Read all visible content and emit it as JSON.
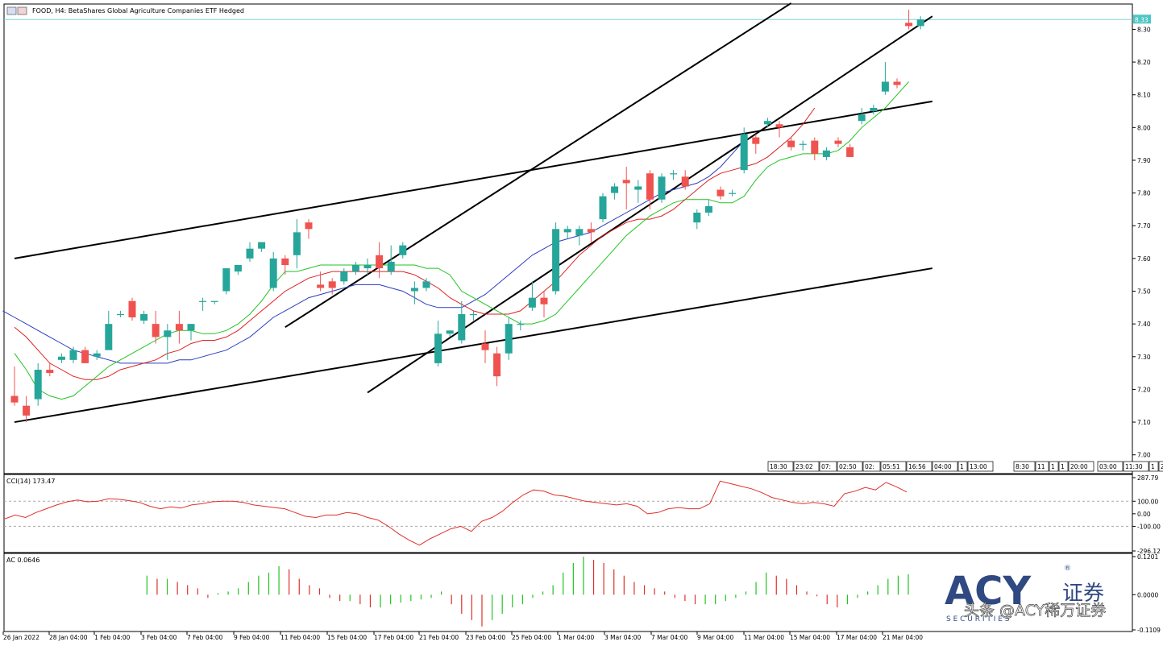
{
  "header": {
    "title": "FOOD, H4:  BetaShares Global Agriculture Companies ETF Hedged"
  },
  "price_axis": {
    "current_price_label": "8.33",
    "ticks": [
      "8.30",
      "8.20",
      "8.10",
      "8.00",
      "7.90",
      "7.80",
      "7.70",
      "7.60",
      "7.50",
      "7.40",
      "7.30",
      "7.20",
      "7.10",
      "7.00"
    ]
  },
  "time_axis": {
    "ticks": [
      "26 Jan 2022",
      "28 Jan 04:00",
      "1 Feb 04:00",
      "3 Feb 04:00",
      "7 Feb 04:00",
      "9 Feb 04:00",
      "11 Feb 04:00",
      "15 Feb 04:00",
      "17 Feb 04:00",
      "21 Feb 04:00",
      "23 Feb 04:00",
      "25 Feb 04:00",
      "1 Mar 04:00",
      "3 Mar 04:00",
      "7 Mar 04:00",
      "9 Mar 04:00",
      "11 Mar 04:00",
      "15 Mar 04:00",
      "17 Mar 04:00",
      "21 Mar 04:00"
    ]
  },
  "session_strip": [
    "18:30",
    "23:02",
    "07:",
    "02:50",
    "02:",
    "05:51",
    "16:56",
    "04:00",
    "1",
    "13:00",
    "8:30",
    "11",
    "1",
    "1",
    "20:00",
    "03:00",
    "11:30",
    "1",
    "20:00",
    "03:00"
  ],
  "cci_pane": {
    "title": "CCI(14) 173.47",
    "ticks": [
      "287.79",
      "100.00",
      "0.00",
      "-100.00",
      "-296.12"
    ]
  },
  "ac_pane": {
    "title": "AC 0.0646",
    "ticks": [
      "0.1201",
      "0.0000",
      "-0.1109"
    ]
  },
  "watermark": {
    "brand": "ACY",
    "registered": "®",
    "sub": "S E C U R I T I E S",
    "cn": "证券",
    "credit": "头条 @ACY稀万证券"
  },
  "colors": {
    "bull": "#26a69a",
    "bear": "#ef5350",
    "ma_fast": "#22c322",
    "ma_mid": "#e02020",
    "ma_slow": "#2a3cc0",
    "cci_line": "#e0302a",
    "price_line": "#7fd3d3",
    "trendline": "#000000"
  },
  "chart_data": {
    "type": "candlestick",
    "symbol": "FOOD",
    "timeframe": "H4",
    "ylim": [
      6.95,
      8.37
    ],
    "current_price": 8.33,
    "candles": [
      {
        "o": 7.18,
        "h": 7.27,
        "l": 7.15,
        "c": 7.16
      },
      {
        "o": 7.15,
        "h": 7.18,
        "l": 7.1,
        "c": 7.12
      },
      {
        "o": 7.17,
        "h": 7.28,
        "l": 7.15,
        "c": 7.26
      },
      {
        "o": 7.26,
        "h": 7.28,
        "l": 7.24,
        "c": 7.25
      },
      {
        "o": 7.29,
        "h": 7.31,
        "l": 7.28,
        "c": 7.3
      },
      {
        "o": 7.29,
        "h": 7.33,
        "l": 7.28,
        "c": 7.32
      },
      {
        "o": 7.32,
        "h": 7.33,
        "l": 7.29,
        "c": 7.28
      },
      {
        "o": 7.3,
        "h": 7.32,
        "l": 7.29,
        "c": 7.31
      },
      {
        "o": 7.32,
        "h": 7.44,
        "l": 7.32,
        "c": 7.4
      },
      {
        "o": 7.43,
        "h": 7.44,
        "l": 7.42,
        "c": 7.43
      },
      {
        "o": 7.47,
        "h": 7.48,
        "l": 7.41,
        "c": 7.42
      },
      {
        "o": 7.41,
        "h": 7.44,
        "l": 7.4,
        "c": 7.43
      },
      {
        "o": 7.4,
        "h": 7.44,
        "l": 7.34,
        "c": 7.36
      },
      {
        "o": 7.36,
        "h": 7.4,
        "l": 7.29,
        "c": 7.38
      },
      {
        "o": 7.4,
        "h": 7.44,
        "l": 7.34,
        "c": 7.38
      },
      {
        "o": 7.38,
        "h": 7.4,
        "l": 7.35,
        "c": 7.4
      },
      {
        "o": 7.47,
        "h": 7.48,
        "l": 7.44,
        "c": 7.47
      },
      {
        "o": 7.47,
        "h": 7.47,
        "l": 7.46,
        "c": 7.47
      },
      {
        "o": 7.5,
        "h": 7.57,
        "l": 7.49,
        "c": 7.57
      },
      {
        "o": 7.56,
        "h": 7.58,
        "l": 7.55,
        "c": 7.58
      },
      {
        "o": 7.6,
        "h": 7.65,
        "l": 7.59,
        "c": 7.63
      },
      {
        "o": 7.63,
        "h": 7.65,
        "l": 7.62,
        "c": 7.65
      },
      {
        "o": 7.51,
        "h": 7.62,
        "l": 7.5,
        "c": 7.6
      },
      {
        "o": 7.6,
        "h": 7.61,
        "l": 7.55,
        "c": 7.58
      },
      {
        "o": 7.61,
        "h": 7.72,
        "l": 7.57,
        "c": 7.68
      },
      {
        "o": 7.71,
        "h": 7.72,
        "l": 7.66,
        "c": 7.69
      },
      {
        "o": 7.52,
        "h": 7.56,
        "l": 7.5,
        "c": 7.51
      },
      {
        "o": 7.53,
        "h": 7.54,
        "l": 7.49,
        "c": 7.51
      },
      {
        "o": 7.53,
        "h": 7.57,
        "l": 7.52,
        "c": 7.56
      },
      {
        "o": 7.56,
        "h": 7.59,
        "l": 7.55,
        "c": 7.58
      },
      {
        "o": 7.57,
        "h": 7.6,
        "l": 7.55,
        "c": 7.58
      },
      {
        "o": 7.61,
        "h": 7.65,
        "l": 7.54,
        "c": 7.57
      },
      {
        "o": 7.56,
        "h": 7.64,
        "l": 7.55,
        "c": 7.59
      },
      {
        "o": 7.61,
        "h": 7.65,
        "l": 7.6,
        "c": 7.64
      },
      {
        "o": 7.5,
        "h": 7.53,
        "l": 7.46,
        "c": 7.51
      },
      {
        "o": 7.51,
        "h": 7.54,
        "l": 7.5,
        "c": 7.53
      },
      {
        "o": 7.28,
        "h": 7.41,
        "l": 7.27,
        "c": 7.37
      },
      {
        "o": 7.37,
        "h": 7.38,
        "l": 7.36,
        "c": 7.38
      },
      {
        "o": 7.35,
        "h": 7.47,
        "l": 7.34,
        "c": 7.43
      },
      {
        "o": 7.43,
        "h": 7.44,
        "l": 7.41,
        "c": 7.43
      },
      {
        "o": 7.34,
        "h": 7.38,
        "l": 7.28,
        "c": 7.32
      },
      {
        "o": 7.31,
        "h": 7.33,
        "l": 7.21,
        "c": 7.24
      },
      {
        "o": 7.31,
        "h": 7.42,
        "l": 7.29,
        "c": 7.4
      },
      {
        "o": 7.4,
        "h": 7.41,
        "l": 7.38,
        "c": 7.4
      },
      {
        "o": 7.45,
        "h": 7.53,
        "l": 7.44,
        "c": 7.48
      },
      {
        "o": 7.48,
        "h": 7.5,
        "l": 7.42,
        "c": 7.46
      },
      {
        "o": 7.5,
        "h": 7.71,
        "l": 7.49,
        "c": 7.69
      },
      {
        "o": 7.68,
        "h": 7.7,
        "l": 7.66,
        "c": 7.69
      },
      {
        "o": 7.67,
        "h": 7.7,
        "l": 7.64,
        "c": 7.69
      },
      {
        "o": 7.69,
        "h": 7.71,
        "l": 7.65,
        "c": 7.68
      },
      {
        "o": 7.72,
        "h": 7.8,
        "l": 7.71,
        "c": 7.79
      },
      {
        "o": 7.8,
        "h": 7.83,
        "l": 7.78,
        "c": 7.82
      },
      {
        "o": 7.84,
        "h": 7.88,
        "l": 7.75,
        "c": 7.83
      },
      {
        "o": 7.81,
        "h": 7.84,
        "l": 7.77,
        "c": 7.82
      },
      {
        "o": 7.86,
        "h": 7.87,
        "l": 7.75,
        "c": 7.78
      },
      {
        "o": 7.78,
        "h": 7.86,
        "l": 7.77,
        "c": 7.85
      },
      {
        "o": 7.86,
        "h": 7.87,
        "l": 7.84,
        "c": 7.86
      },
      {
        "o": 7.85,
        "h": 7.87,
        "l": 7.81,
        "c": 7.82
      },
      {
        "o": 7.71,
        "h": 7.75,
        "l": 7.69,
        "c": 7.74
      },
      {
        "o": 7.74,
        "h": 7.78,
        "l": 7.73,
        "c": 7.76
      },
      {
        "o": 7.81,
        "h": 7.82,
        "l": 7.78,
        "c": 7.79
      },
      {
        "o": 7.8,
        "h": 7.81,
        "l": 7.79,
        "c": 7.8
      },
      {
        "o": 7.87,
        "h": 8.0,
        "l": 7.86,
        "c": 7.98
      },
      {
        "o": 7.97,
        "h": 7.98,
        "l": 7.92,
        "c": 7.95
      },
      {
        "o": 8.01,
        "h": 8.03,
        "l": 8.0,
        "c": 8.02
      },
      {
        "o": 8.01,
        "h": 8.02,
        "l": 7.97,
        "c": 8.0
      },
      {
        "o": 7.96,
        "h": 7.97,
        "l": 7.93,
        "c": 7.94
      },
      {
        "o": 7.95,
        "h": 7.96,
        "l": 7.93,
        "c": 7.95
      },
      {
        "o": 7.96,
        "h": 7.97,
        "l": 7.9,
        "c": 7.92
      },
      {
        "o": 7.91,
        "h": 7.94,
        "l": 7.9,
        "c": 7.93
      },
      {
        "o": 7.96,
        "h": 7.97,
        "l": 7.94,
        "c": 7.95
      },
      {
        "o": 7.94,
        "h": 7.95,
        "l": 7.91,
        "c": 7.91
      },
      {
        "o": 8.02,
        "h": 8.06,
        "l": 8.01,
        "c": 8.04
      },
      {
        "o": 8.05,
        "h": 8.07,
        "l": 8.04,
        "c": 8.06
      },
      {
        "o": 8.11,
        "h": 8.2,
        "l": 8.1,
        "c": 8.14
      },
      {
        "o": 8.14,
        "h": 8.15,
        "l": 8.12,
        "c": 8.13
      },
      {
        "o": 8.32,
        "h": 8.36,
        "l": 8.3,
        "c": 8.31
      },
      {
        "o": 8.31,
        "h": 8.34,
        "l": 8.3,
        "c": 8.33
      }
    ],
    "ma_fast": [
      7.31,
      7.26,
      7.2,
      7.18,
      7.17,
      7.18,
      7.21,
      7.24,
      7.27,
      7.29,
      7.31,
      7.33,
      7.35,
      7.37,
      7.38,
      7.38,
      7.37,
      7.37,
      7.38,
      7.4,
      7.43,
      7.47,
      7.52,
      7.56,
      7.56,
      7.57,
      7.58,
      7.58,
      7.58,
      7.58,
      7.58,
      7.58,
      7.58,
      7.58,
      7.58,
      7.57,
      7.57,
      7.55,
      7.5,
      7.48,
      7.46,
      7.44,
      7.42,
      7.4,
      7.4,
      7.41,
      7.43,
      7.47,
      7.51,
      7.55,
      7.59,
      7.63,
      7.67,
      7.7,
      7.73,
      7.75,
      7.77,
      7.78,
      7.78,
      7.78,
      7.77,
      7.77,
      7.79,
      7.84,
      7.88,
      7.9,
      7.91,
      7.92,
      7.92,
      7.92,
      7.93,
      7.96,
      8.0,
      8.03,
      8.06,
      8.1,
      8.14
    ],
    "ma_mid": [
      7.39,
      7.36,
      7.32,
      7.28,
      7.26,
      7.24,
      7.23,
      7.23,
      7.24,
      7.26,
      7.27,
      7.28,
      7.29,
      7.31,
      7.32,
      7.34,
      7.35,
      7.35,
      7.36,
      7.38,
      7.41,
      7.44,
      7.47,
      7.5,
      7.52,
      7.54,
      7.55,
      7.56,
      7.56,
      7.56,
      7.56,
      7.56,
      7.56,
      7.56,
      7.55,
      7.53,
      7.51,
      7.48,
      7.46,
      7.44,
      7.43,
      7.43,
      7.43,
      7.44,
      7.47,
      7.5,
      7.53,
      7.57,
      7.61,
      7.64,
      7.67,
      7.69,
      7.71,
      7.72,
      7.72,
      7.73,
      7.75,
      7.78,
      7.81,
      7.84,
      7.86,
      7.87,
      7.88,
      7.89,
      7.91,
      7.94,
      7.97,
      8.01,
      8.06
    ],
    "ma_slow": [
      7.44,
      7.42,
      7.4,
      7.38,
      7.36,
      7.34,
      7.32,
      7.31,
      7.3,
      7.29,
      7.28,
      7.28,
      7.28,
      7.28,
      7.28,
      7.29,
      7.29,
      7.3,
      7.31,
      7.32,
      7.34,
      7.36,
      7.39,
      7.42,
      7.44,
      7.46,
      7.48,
      7.49,
      7.5,
      7.51,
      7.52,
      7.52,
      7.52,
      7.51,
      7.5,
      7.48,
      7.46,
      7.45,
      7.45,
      7.45,
      7.47,
      7.49,
      7.52,
      7.55,
      7.58,
      7.61,
      7.63,
      7.65,
      7.66,
      7.67,
      7.68,
      7.7,
      7.72,
      7.74,
      7.76,
      7.78,
      7.8,
      7.81,
      7.82,
      7.83,
      7.85,
      7.88,
      7.92,
      7.96
    ],
    "trendlines": [
      {
        "from": {
          "bar": 0,
          "price": 7.6
        },
        "to": {
          "bar": 78,
          "price": 8.08
        }
      },
      {
        "from": {
          "bar": 0,
          "price": 7.1
        },
        "to": {
          "bar": 78,
          "price": 7.57
        }
      },
      {
        "from": {
          "bar": 23,
          "price": 7.39
        },
        "to": {
          "bar": 66,
          "price": 8.38
        }
      },
      {
        "from": {
          "bar": 30,
          "price": 7.19
        },
        "to": {
          "bar": 78,
          "price": 8.34
        }
      }
    ],
    "cci": [
      -40,
      -10,
      -30,
      10,
      40,
      70,
      95,
      110,
      95,
      100,
      120,
      115,
      105,
      90,
      60,
      40,
      55,
      45,
      70,
      80,
      95,
      100,
      100,
      90,
      70,
      60,
      50,
      40,
      10,
      -20,
      -30,
      -10,
      -10,
      10,
      0,
      -30,
      -50,
      -100,
      -160,
      -210,
      -250,
      -200,
      -160,
      -120,
      -100,
      -140,
      -60,
      -30,
      20,
      90,
      150,
      190,
      180,
      150,
      140,
      120,
      100,
      90,
      80,
      70,
      80,
      60,
      0,
      10,
      40,
      50,
      40,
      40,
      80,
      260,
      240,
      220,
      200,
      170,
      130,
      110,
      90,
      80,
      90,
      80,
      60,
      160,
      180,
      210,
      190,
      250,
      215,
      173.47
    ],
    "cci_ylim": [
      -296.12,
      287.79
    ],
    "ac": [
      null,
      null,
      null,
      null,
      null,
      null,
      null,
      null,
      null,
      null,
      null,
      null,
      null,
      null,
      0.06,
      0.05,
      0.05,
      0.04,
      0.03,
      0.02,
      -0.01,
      0.005,
      0.01,
      0.02,
      0.04,
      0.06,
      0.07,
      0.09,
      0.08,
      0.05,
      0.03,
      0.02,
      -0.01,
      -0.02,
      -0.02,
      -0.03,
      -0.04,
      -0.04,
      -0.03,
      -0.025,
      -0.02,
      -0.015,
      -0.01,
      0.01,
      -0.03,
      -0.06,
      -0.08,
      -0.1,
      -0.08,
      -0.06,
      -0.04,
      -0.03,
      -0.01,
      0.01,
      0.03,
      0.07,
      0.1,
      0.12,
      0.11,
      0.1,
      0.08,
      0.06,
      0.04,
      0.03,
      0.02,
      0.01,
      -0.01,
      -0.02,
      -0.03,
      -0.03,
      -0.03,
      -0.02,
      -0.01,
      0.01,
      0.04,
      0.07,
      0.06,
      0.05,
      0.03,
      0.01,
      -0.005,
      -0.03,
      -0.04,
      -0.03,
      -0.01,
      0.01,
      0.03,
      0.05,
      0.06,
      0.0646
    ],
    "ac_ylim": [
      -0.1109,
      0.1201
    ]
  }
}
